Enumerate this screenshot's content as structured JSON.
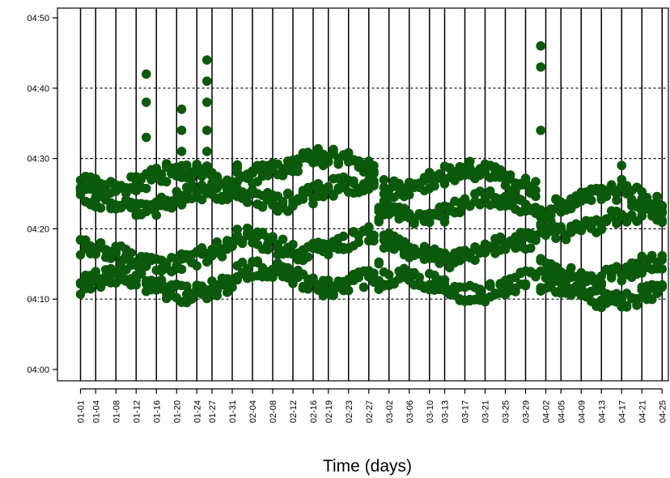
{
  "chart_data": {
    "type": "scatter",
    "title": "",
    "xlabel": "Time (days)",
    "ylabel": "",
    "grid": "dotted horizontal lines at 04:10, 04:20, 04:30, 04:40",
    "point_color": "#0b5a0b",
    "day_rule_color": "#000000",
    "y_axis": {
      "range": [
        "04:00",
        "04:50"
      ],
      "ticks": [
        "04:00",
        "04:10",
        "04:20",
        "04:30",
        "04:40",
        "04:50"
      ]
    },
    "x_axis": {
      "range": [
        "01-01",
        "04-26"
      ],
      "tick_labels": [
        "01-01",
        "01-04",
        "01-08",
        "01-12",
        "01-16",
        "01-20",
        "01-24",
        "01-27",
        "01-31",
        "02-04",
        "02-08",
        "02-12",
        "02-16",
        "02-19",
        "02-23",
        "02-27",
        "03-02",
        "03-06",
        "03-10",
        "03-13",
        "03-17",
        "03-21",
        "03-25",
        "03-29",
        "04-02",
        "04-05",
        "04-09",
        "04-13",
        "04-17",
        "04-21",
        "04-25"
      ]
    },
    "series": [
      {
        "values_description": "dense daily observation times",
        "bands": [
          {
            "from": "01-01",
            "to": "01-31",
            "times": [
              "04:12",
              "04:16",
              "04:24",
              "04:27"
            ]
          },
          {
            "from": "02-01",
            "to": "02-28",
            "times": [
              "04:13",
              "04:18",
              "04:25",
              "04:29"
            ]
          },
          {
            "from": "03-01",
            "to": "03-31",
            "times": [
              "04:12",
              "04:17",
              "04:23",
              "04:27"
            ]
          },
          {
            "from": "04-01",
            "to": "04-25",
            "times": [
              "04:11",
              "04:14",
              "04:21",
              "04:24"
            ]
          }
        ],
        "outliers": [
          {
            "x": "01-14",
            "y": [
              "04:33",
              "04:38",
              "04:42"
            ]
          },
          {
            "x": "01-21",
            "y": [
              "04:31",
              "04:34",
              "04:37"
            ]
          },
          {
            "x": "01-26",
            "y": [
              "04:31",
              "04:34",
              "04:38",
              "04:41",
              "04:44"
            ]
          },
          {
            "x": "04-01",
            "y": [
              "04:34",
              "04:43",
              "04:46"
            ]
          },
          {
            "x": "04-17",
            "y": [
              "04:27",
              "04:29"
            ]
          }
        ]
      }
    ]
  }
}
